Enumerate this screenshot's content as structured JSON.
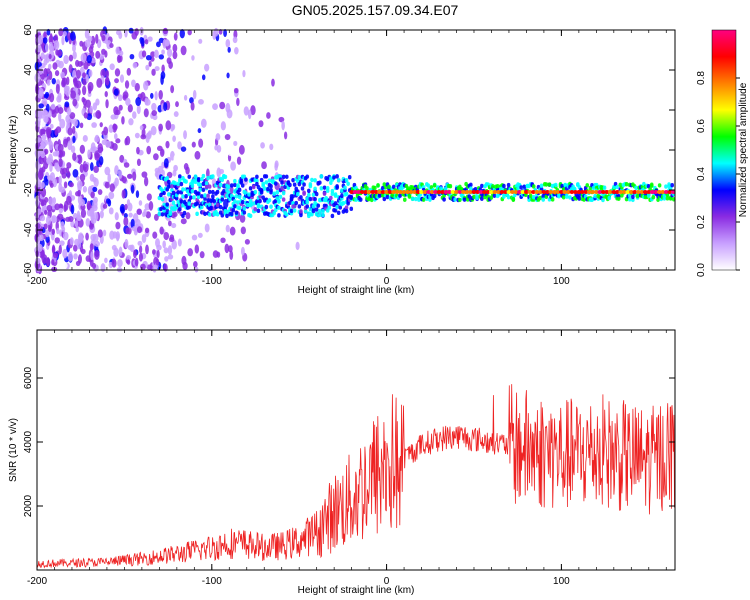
{
  "title": "GN05.2025.157.09.34.E07",
  "chart_data": [
    {
      "type": "heatmap",
      "xlabel": "Height of straight line (km)",
      "ylabel": "Frequency (Hz)",
      "xlim": [
        -200,
        165
      ],
      "ylim": [
        -60,
        60
      ],
      "x_ticks": [
        -200,
        -100,
        0,
        100
      ],
      "y_ticks": [
        -60,
        -40,
        -20,
        0,
        20,
        40,
        60
      ],
      "x_tick_labels": [
        "-200",
        "-100",
        "0",
        "100"
      ],
      "y_tick_labels": [
        "-60",
        "-40",
        "-20",
        "0",
        "20",
        "40",
        "60"
      ],
      "colorbar": {
        "label": "Normalized spectral amplitude",
        "range": [
          0,
          1
        ],
        "ticks": [
          0.0,
          0.2,
          0.4,
          0.6,
          0.8
        ],
        "tick_labels": [
          "0.0",
          "0.2",
          "0.4",
          "0.6",
          "0.8"
        ],
        "colormap": [
          "#ffffff",
          "#c8a0ff",
          "#8a2be2",
          "#0000ff",
          "#00ffff",
          "#00ff00",
          "#ffff00",
          "#ff8000",
          "#ff0000",
          "#ff0080"
        ]
      },
      "features": {
        "carrier_frequency_hz": -21,
        "noise_region_x": [
          -200,
          -120
        ],
        "signal_onset_x": -20
      }
    },
    {
      "type": "line",
      "xlabel": "Height of straight line (km)",
      "ylabel": "SNR (10 * v/v)",
      "xlim": [
        -200,
        165
      ],
      "ylim": [
        0,
        7500
      ],
      "x_ticks": [
        -200,
        -100,
        0,
        100
      ],
      "y_ticks": [
        2000,
        4000,
        6000
      ],
      "x_tick_labels": [
        "-200",
        "-100",
        "0",
        "100"
      ],
      "y_tick_labels": [
        "2000",
        "4000",
        "6000"
      ],
      "color": "#ee2222",
      "series": [
        {
          "x": [
            -200,
            -180,
            -160,
            -140,
            -120,
            -100,
            -90,
            -80,
            -70,
            -60,
            -50,
            -40,
            -35,
            -30,
            -25,
            -20,
            -15,
            -10,
            -5,
            0,
            5,
            8,
            10,
            15,
            20,
            30,
            40,
            50,
            60,
            70,
            80,
            90,
            100,
            110,
            120,
            130,
            140,
            150,
            155,
            160,
            165
          ],
          "y": [
            200,
            220,
            250,
            350,
            500,
            700,
            850,
            800,
            700,
            750,
            900,
            1200,
            1500,
            1800,
            2000,
            2200,
            2500,
            2800,
            3000,
            3200,
            3400,
            3000,
            3500,
            3700,
            3900,
            4100,
            4200,
            4100,
            4000,
            3900,
            3800,
            3700,
            3600,
            3600,
            3700,
            3600,
            3500,
            3400,
            3500,
            3700,
            3700
          ]
        }
      ]
    }
  ]
}
